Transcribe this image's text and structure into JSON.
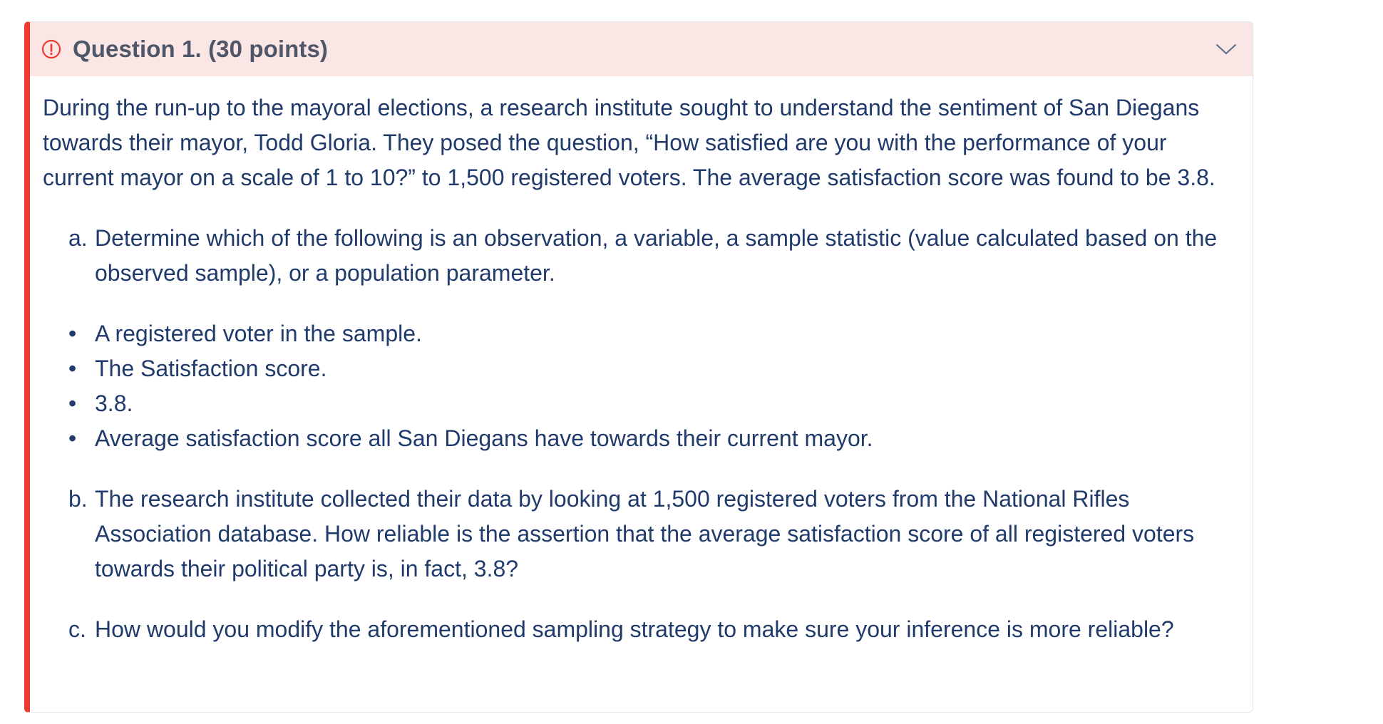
{
  "callout": {
    "title": "Question 1. (30 points)",
    "icon": "alert-circle-icon",
    "toggle_icon": "chevron-down-icon",
    "accent_color": "#ee3a2f",
    "header_bg": "#fbe6e6"
  },
  "question": {
    "intro": "During the run-up to the mayoral elections, a research institute sought to understand the sentiment of San Diegans towards their mayor, Todd Gloria. They posed the question, “How satisfied are you with the performance of your current mayor on a scale of 1 to 10?” to 1,500 registered voters. The average satisfaction score was found to be 3.8.",
    "part_a": {
      "letter": "a.",
      "text": "Determine which of the following is an observation, a variable, a sample statistic (value calculated based on the observed sample), or a population parameter."
    },
    "bullets": [
      "A registered voter in the sample.",
      "The Satisfaction score.",
      "3.8.",
      "Average satisfaction score all San Diegans have towards their current mayor."
    ],
    "part_b": {
      "letter": "b.",
      "text": "The research institute collected their data by looking at 1,500 registered voters from the National Rifles Association database. How reliable is the assertion that the average satisfaction score of all registered voters towards their political party is, in fact, 3.8?"
    },
    "part_c": {
      "letter": "c.",
      "text": "How would you modify the aforementioned sampling strategy to make sure your inference is more reliable?"
    }
  }
}
